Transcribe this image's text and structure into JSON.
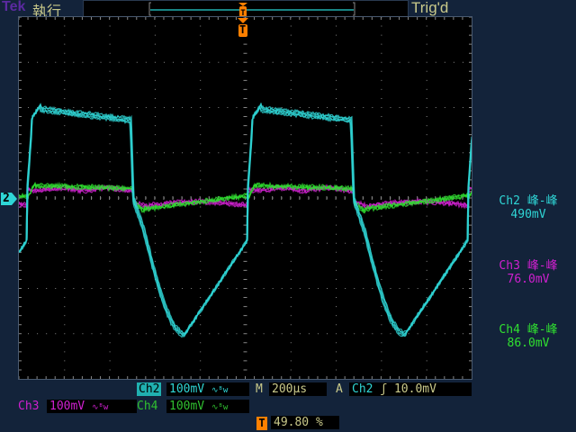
{
  "header": {
    "brand": "Tek",
    "mode": "執行",
    "status": "Trig'd"
  },
  "colors": {
    "ch2": "#2fd6d6",
    "ch3": "#d020d0",
    "ch4": "#30e030",
    "trigger": "#ff8000",
    "text": "#c9c98a"
  },
  "measurements": [
    {
      "label": "Ch2 峰-峰",
      "value": "490mV"
    },
    {
      "label": "Ch3 峰-峰",
      "value": "76.0mV"
    },
    {
      "label": "Ch4 峰-峰",
      "value": "86.0mV"
    }
  ],
  "channel_marker": "2",
  "trigger_marker": "T",
  "footer": {
    "ch2": {
      "name": "Ch2",
      "scale": "100mV",
      "bw": "∿ᴮw"
    },
    "ch3": {
      "name": "Ch3",
      "scale": "100mV",
      "bw": "∿ᴮw"
    },
    "ch4": {
      "name": "Ch4",
      "scale": "100mV",
      "bw": "∿ᴮw"
    },
    "timebase_label": "M",
    "timebase": "200µs",
    "trigger_label": "A",
    "trigger_source": "Ch2",
    "trigger_slope": "ʃ",
    "trigger_level": "10.0mV",
    "trigger_position": "49.80 %"
  }
}
